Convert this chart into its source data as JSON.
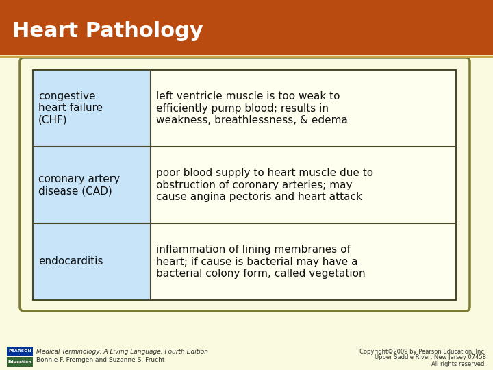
{
  "title": "Heart Pathology",
  "title_bg_color": "#b94a10",
  "title_text_color": "#ffffff",
  "title_underline_color": "#c8a84b",
  "page_bg_color": "#fafae0",
  "table_border_color": "#4a4a2a",
  "table_outer_border_color": "#7a7a30",
  "left_col_bg": "#c8e4f8",
  "right_col_bg": "#fffff0",
  "rows": [
    {
      "left": "congestive\nheart failure\n(CHF)",
      "right": "left ventricle muscle is too weak to\nefficiently pump blood; results in\nweakness, breathlessness, & edema"
    },
    {
      "left": "coronary artery\ndisease (CAD)",
      "right": "poor blood supply to heart muscle due to\nobstruction of coronary arteries; may\ncause angina pectoris and heart attack"
    },
    {
      "left": "endocarditis",
      "right": "inflammation of lining membranes of\nheart; if cause is bacterial may have a\nbacterial colony form, called vegetation"
    }
  ],
  "footer_left_line1": "Medical Terminology: A Living Language, Fourth Edition",
  "footer_left_line2": "Bonnie F. Fremgen and Suzanne S. Frucht",
  "footer_right_line1": "Copyright©2009 by Pearson Education, Inc.",
  "footer_right_line2": "Upper Saddle River, New Jersey 07458",
  "footer_right_line3": "All rights reserved.",
  "pearson_box_color1": "#003399",
  "pearson_box_color2": "#336633",
  "table_font_size": 11,
  "title_font_size": 22
}
